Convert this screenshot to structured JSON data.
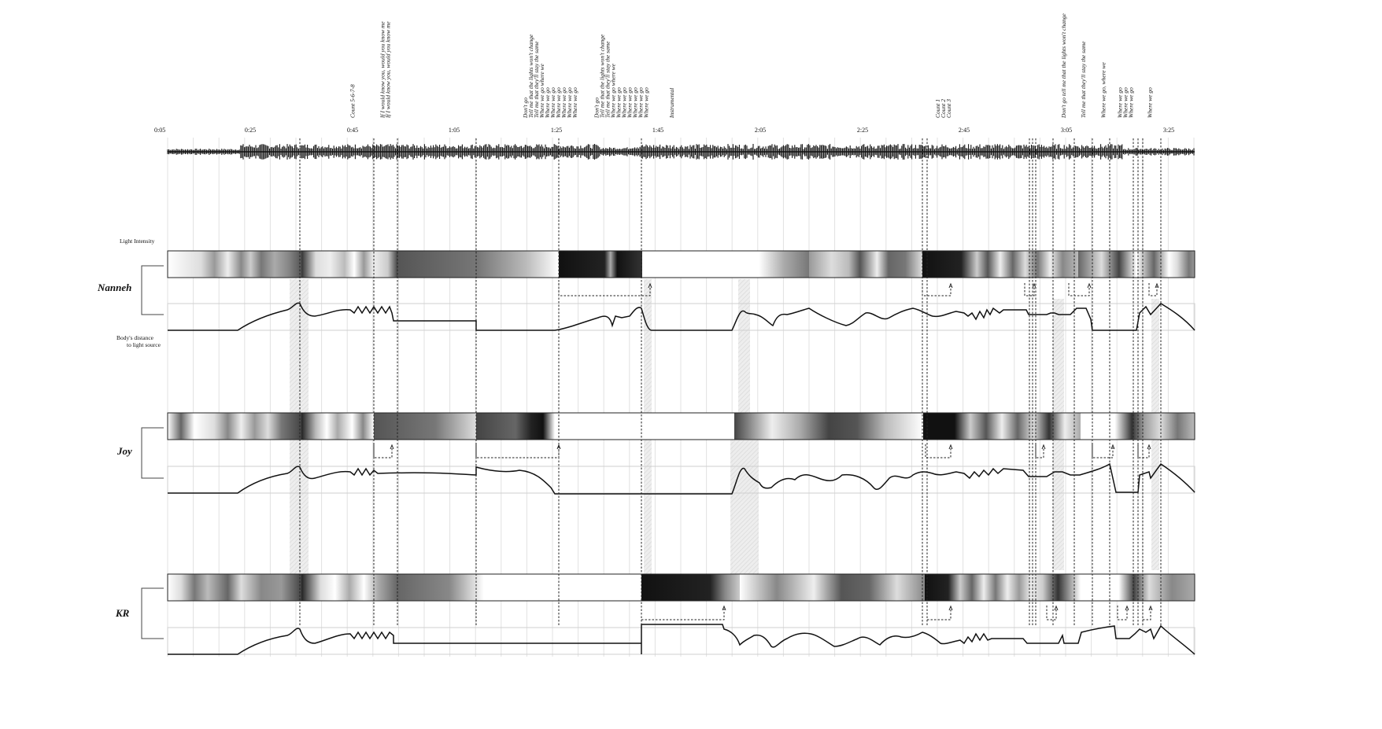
{
  "time_ticks": [
    "0:05",
    "0:25",
    "0:45",
    "1:05",
    "1:25",
    "1:45",
    "2:05",
    "2:25",
    "2:45",
    "3:05",
    "3:25"
  ],
  "legend": {
    "light_intensity": "Light Intensity",
    "distance_line1": "Body's distance",
    "distance_line2": "to light source"
  },
  "performers": [
    {
      "name": "Nanneh"
    },
    {
      "name": "Joy"
    },
    {
      "name": "KR"
    }
  ],
  "lyric_groups": [
    {
      "t": 0.282,
      "lines": [
        "Count 5-6-7-8"
      ]
    },
    {
      "t": 0.327,
      "lines": [
        "If I would know you, would you know me",
        "If I would know you, would you know me"
      ]
    },
    {
      "t": 0.543,
      "lines": [
        "Don't go",
        "Tell me that the lights won't change",
        "Tell me that they'll stay the same",
        "Where we go where we",
        "Where we go",
        "Where we go",
        "Where we go",
        "Where we go",
        "Where we go",
        "Where we go"
      ]
    },
    {
      "t": 0.65,
      "lines": [
        "Don't go",
        "Tell me that the lights won't change",
        "Tell me that they'll stay the same",
        "Where we go where we",
        "Where we go",
        "Where we go",
        "Where we go",
        "Where we go",
        "Where we go",
        "Where we go"
      ]
    },
    {
      "t": 0.764,
      "lines": [
        "Instrumental"
      ]
    },
    {
      "t": 1.165,
      "lines": [
        "Count 1",
        "Count 2",
        "Count 3"
      ]
    },
    {
      "t": 1.355,
      "lines": [
        "Don't go tell me that the lights won't change"
      ]
    },
    {
      "t": 1.385,
      "lines": [
        "Tell me that they'll stay the same"
      ]
    },
    {
      "t": 1.415,
      "lines": [
        "Where we go, where we"
      ]
    },
    {
      "t": 1.44,
      "lines": [
        "Where we go",
        "Where we go",
        "Where we go"
      ]
    },
    {
      "t": 1.485,
      "lines": [
        "Where we go"
      ]
    }
  ]
}
